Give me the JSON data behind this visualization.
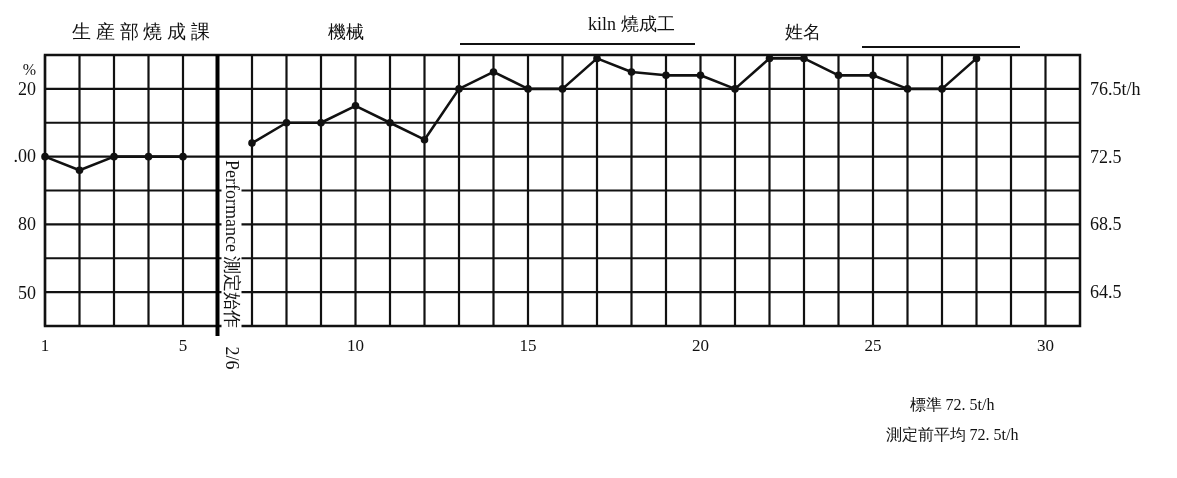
{
  "chart_data": {
    "type": "line",
    "series": [
      {
        "color": "#111111",
        "axis": "y2",
        "x": [
          1,
          2,
          3,
          4,
          5
        ],
        "values": [
          72.5,
          71.7,
          72.5,
          72.5,
          72.5
        ]
      },
      {
        "color": "#111111",
        "axis": "y2",
        "x": [
          7,
          8,
          9,
          10,
          11,
          12,
          13,
          14,
          15,
          16,
          17,
          18,
          19,
          20,
          21,
          22,
          23,
          24,
          25,
          26,
          27,
          28
        ],
        "values": [
          73.3,
          74.5,
          74.5,
          75.5,
          74.5,
          73.5,
          76.5,
          77.5,
          76.5,
          76.5,
          78.3,
          77.5,
          77.3,
          77.3,
          76.5,
          78.3,
          78.3,
          77.3,
          77.3,
          76.5,
          76.5,
          78.3
        ]
      }
    ],
    "xlim": [
      1,
      31
    ],
    "xticks": [
      1,
      {
        "value": 2,
        "label": null
      },
      {
        "value": 3,
        "label": null
      },
      {
        "value": 4,
        "label": null
      },
      5,
      {
        "value": 6,
        "label": null
      },
      {
        "value": 7,
        "label": null
      },
      {
        "value": 8,
        "label": null
      },
      {
        "value": 9,
        "label": null
      },
      10,
      {
        "value": 11,
        "label": null
      },
      {
        "value": 12,
        "label": null
      },
      {
        "value": 13,
        "label": null
      },
      {
        "value": 14,
        "label": null
      },
      15,
      {
        "value": 16,
        "label": null
      },
      {
        "value": 17,
        "label": null
      },
      {
        "value": 18,
        "label": null
      },
      {
        "value": 19,
        "label": null
      },
      20,
      {
        "value": 21,
        "label": null
      },
      {
        "value": 22,
        "label": null
      },
      {
        "value": 23,
        "label": null
      },
      {
        "value": 24,
        "label": null
      },
      25,
      {
        "value": 26,
        "label": null
      },
      {
        "value": 27,
        "label": null
      },
      {
        "value": 28,
        "label": null
      },
      {
        "value": 29,
        "label": null
      },
      30
    ],
    "y2lim": [
      62.5,
      78.5
    ],
    "y2ticks": [
      64.5,
      {
        "value": 66.5,
        "label": null
      },
      68.5,
      {
        "value": 70.5,
        "label": null
      },
      72.5,
      {
        "value": 74.5,
        "label": null
      },
      {
        "value": 76.5,
        "label": "76.5t/h"
      }
    ],
    "grid": true,
    "marker": "circle",
    "line_style": "solid",
    "ref_lines": [
      {
        "axis": "x",
        "value": 6,
        "label": "Performance 測定始作　2/6",
        "color": "#000000"
      }
    ],
    "annotations": [
      "生 産 部 燒 成 課",
      "機械",
      "kiln 燒成工",
      "姓名",
      "標準 72. 5t/h",
      "測定前平均 72. 5t/h",
      "%",
      "20",
      ".00",
      "80",
      "50"
    ]
  }
}
